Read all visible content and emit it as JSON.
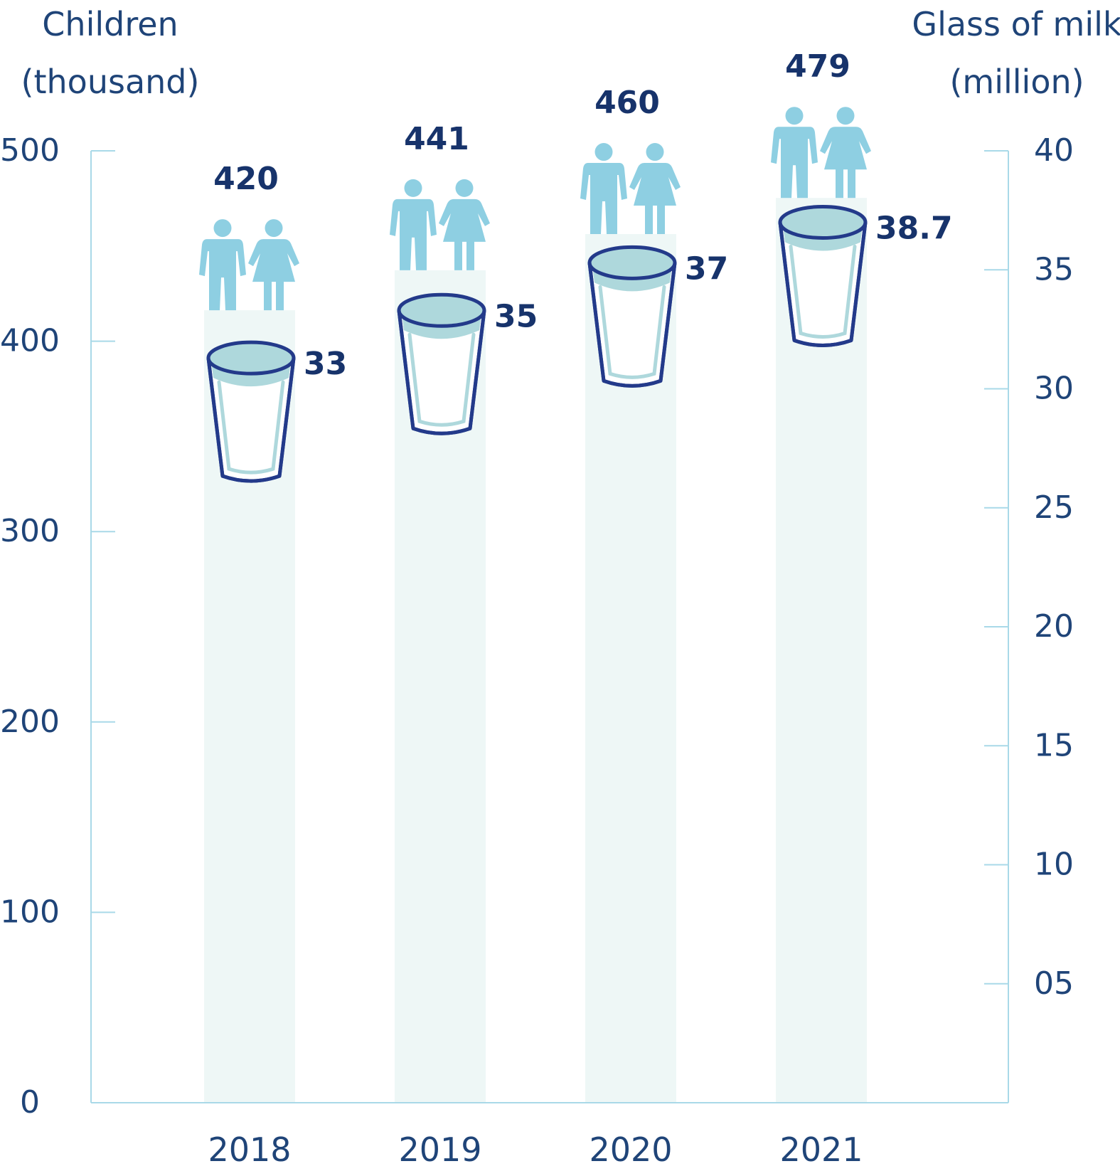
{
  "chart_data": {
    "type": "bar",
    "categories": [
      "2018",
      "2019",
      "2020",
      "2021"
    ],
    "series": [
      {
        "name": "Children (thousand)",
        "values": [
          420,
          441,
          460,
          479
        ],
        "axis": "left"
      },
      {
        "name": "Glass of milk (million)",
        "values": [
          33,
          35,
          37,
          38.7
        ],
        "axis": "right"
      }
    ],
    "left_axis": {
      "title_line1": "Children",
      "title_line2": "(thousand)",
      "ylim": [
        0,
        500
      ],
      "ticks": [
        "0",
        "100",
        "200",
        "300",
        "400",
        "500"
      ]
    },
    "right_axis": {
      "title_line1": "Glass of milk",
      "title_line2": "(million)",
      "ylim": [
        0,
        40
      ],
      "ticks": [
        "05",
        "10",
        "15",
        "20",
        "25",
        "30",
        "35",
        "40"
      ]
    },
    "value_labels_children": [
      "420",
      "441",
      "460",
      "479"
    ],
    "value_labels_milk": [
      "33",
      "35",
      "37",
      "38.7"
    ],
    "colors": {
      "bar": "#eef7f6",
      "axis": "#a9d9e8",
      "figure": "#8ecfe2",
      "glass_outline": "#233a8a",
      "milk_surface": "#aed8dc",
      "text": "#1f4478",
      "value_text": "#17336b"
    },
    "icons": [
      "boy-icon",
      "girl-icon",
      "milk-glass-icon"
    ]
  }
}
